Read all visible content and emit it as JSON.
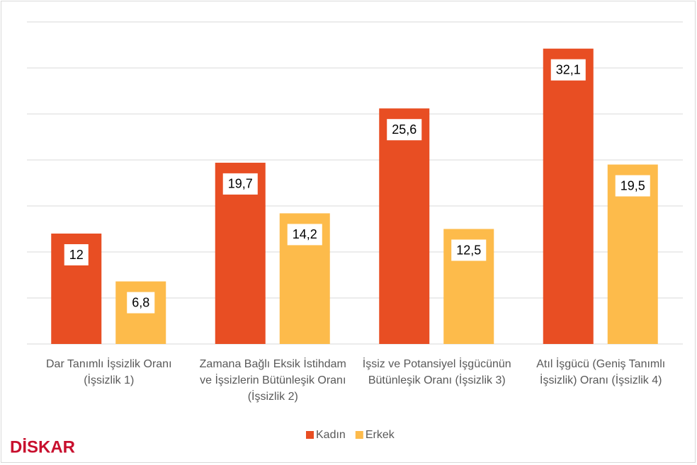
{
  "chart_data": {
    "type": "bar",
    "categories": [
      "Dar Tanımlı İşsizlik Oranı (İşsizlik 1)",
      "Zamana Bağlı Eksik İstihdam ve İşsizlerin Bütünleşik Oranı (İşsizlik 2)",
      "İşsiz ve Potansiyel İşgücünün Bütünleşik Oranı (İşsizlik 3)",
      "Atıl İşgücü (Geniş Tanımlı İşsizlik) Oranı (İşsizlik 4)"
    ],
    "series": [
      {
        "name": "Kadın",
        "color": "#e84e23",
        "values": [
          12,
          19.7,
          25.6,
          32.1
        ],
        "value_labels": [
          "12",
          "19,7",
          "25,6",
          "32,1"
        ]
      },
      {
        "name": "Erkek",
        "color": "#fdbb4b",
        "values": [
          6.8,
          14.2,
          12.5,
          19.5
        ],
        "value_labels": [
          "6,8",
          "14,2",
          "12,5",
          "19,5"
        ]
      }
    ],
    "ylim": [
      0,
      35
    ],
    "yticks": [
      0,
      5,
      10,
      15,
      20,
      25,
      30,
      35
    ],
    "grid": true,
    "legend": "bottom",
    "logo": "DİSKAR"
  }
}
